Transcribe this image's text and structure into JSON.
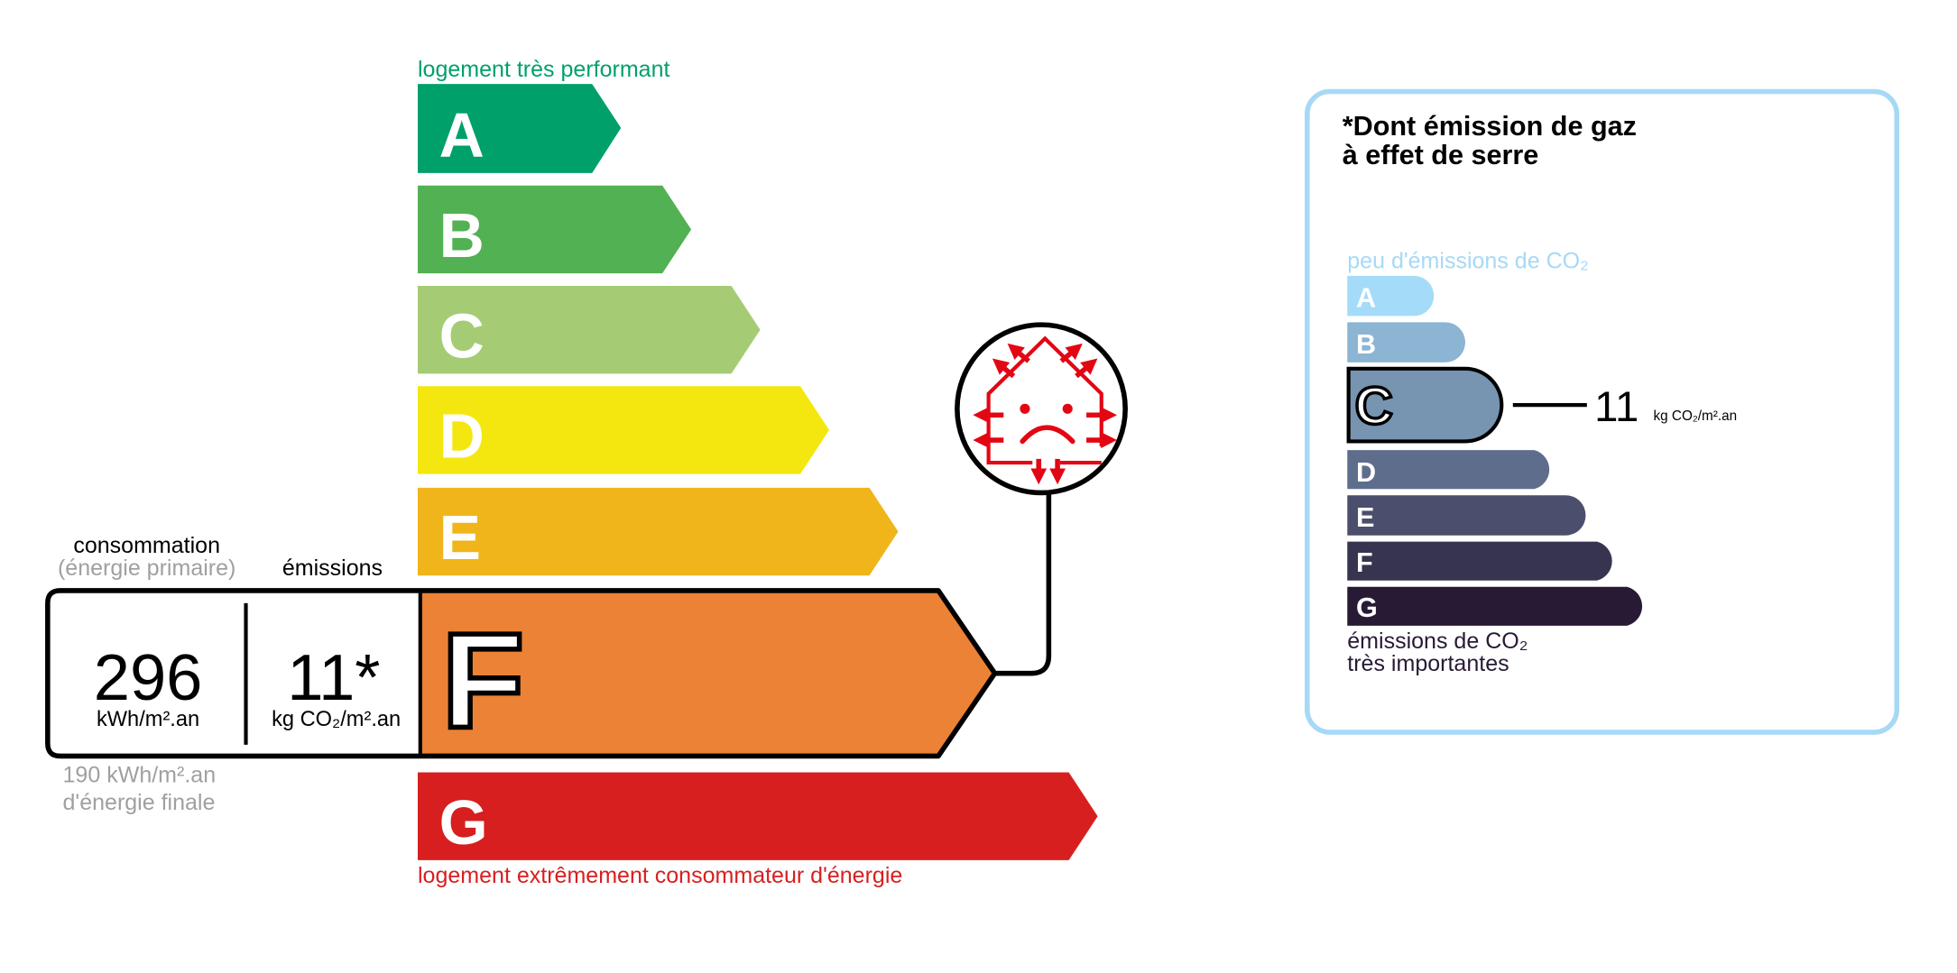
{
  "energy": {
    "top_label": "logement très performant",
    "bottom_label": "logement extrêmement consommateur d'énergie",
    "classes": [
      {
        "letter": "A",
        "color": "#00a06b"
      },
      {
        "letter": "B",
        "color": "#52b153"
      },
      {
        "letter": "C",
        "color": "#a5cc74"
      },
      {
        "letter": "D",
        "color": "#f4e70f"
      },
      {
        "letter": "E",
        "color": "#f0b51a"
      },
      {
        "letter": "F",
        "color": "#eb8235"
      },
      {
        "letter": "G",
        "color": "#d71f20"
      }
    ],
    "current_class": "F",
    "consumption_label": "consommation",
    "consumption_sublabel": "(énergie primaire)",
    "emissions_label": "émissions",
    "consumption_value": "296",
    "consumption_unit": "kWh/m².an",
    "emissions_value": "11*",
    "emissions_unit": "kg CO₂/m².an",
    "final_energy_line1": "190 kWh/m².an",
    "final_energy_line2": "d'énergie finale",
    "icon": "house-heat-loss-sad-face-icon"
  },
  "ghg": {
    "title_line1": "*Dont émission de gaz",
    "title_line2": "à effet de serre",
    "top_label": "peu d'émissions de CO₂",
    "bottom_label_line1": "émissions de CO₂",
    "bottom_label_line2": "très importantes",
    "classes": [
      {
        "letter": "A",
        "color": "#a4dbf8"
      },
      {
        "letter": "B",
        "color": "#8cb4d3"
      },
      {
        "letter": "C",
        "color": "#7794b1"
      },
      {
        "letter": "D",
        "color": "#5f6d8d"
      },
      {
        "letter": "E",
        "color": "#4b4e6c"
      },
      {
        "letter": "F",
        "color": "#37344f"
      },
      {
        "letter": "G",
        "color": "#281a34"
      }
    ],
    "current_class": "C",
    "value": "11",
    "unit": "kg CO₂/m².an",
    "border_color": "#a6d9f5"
  }
}
